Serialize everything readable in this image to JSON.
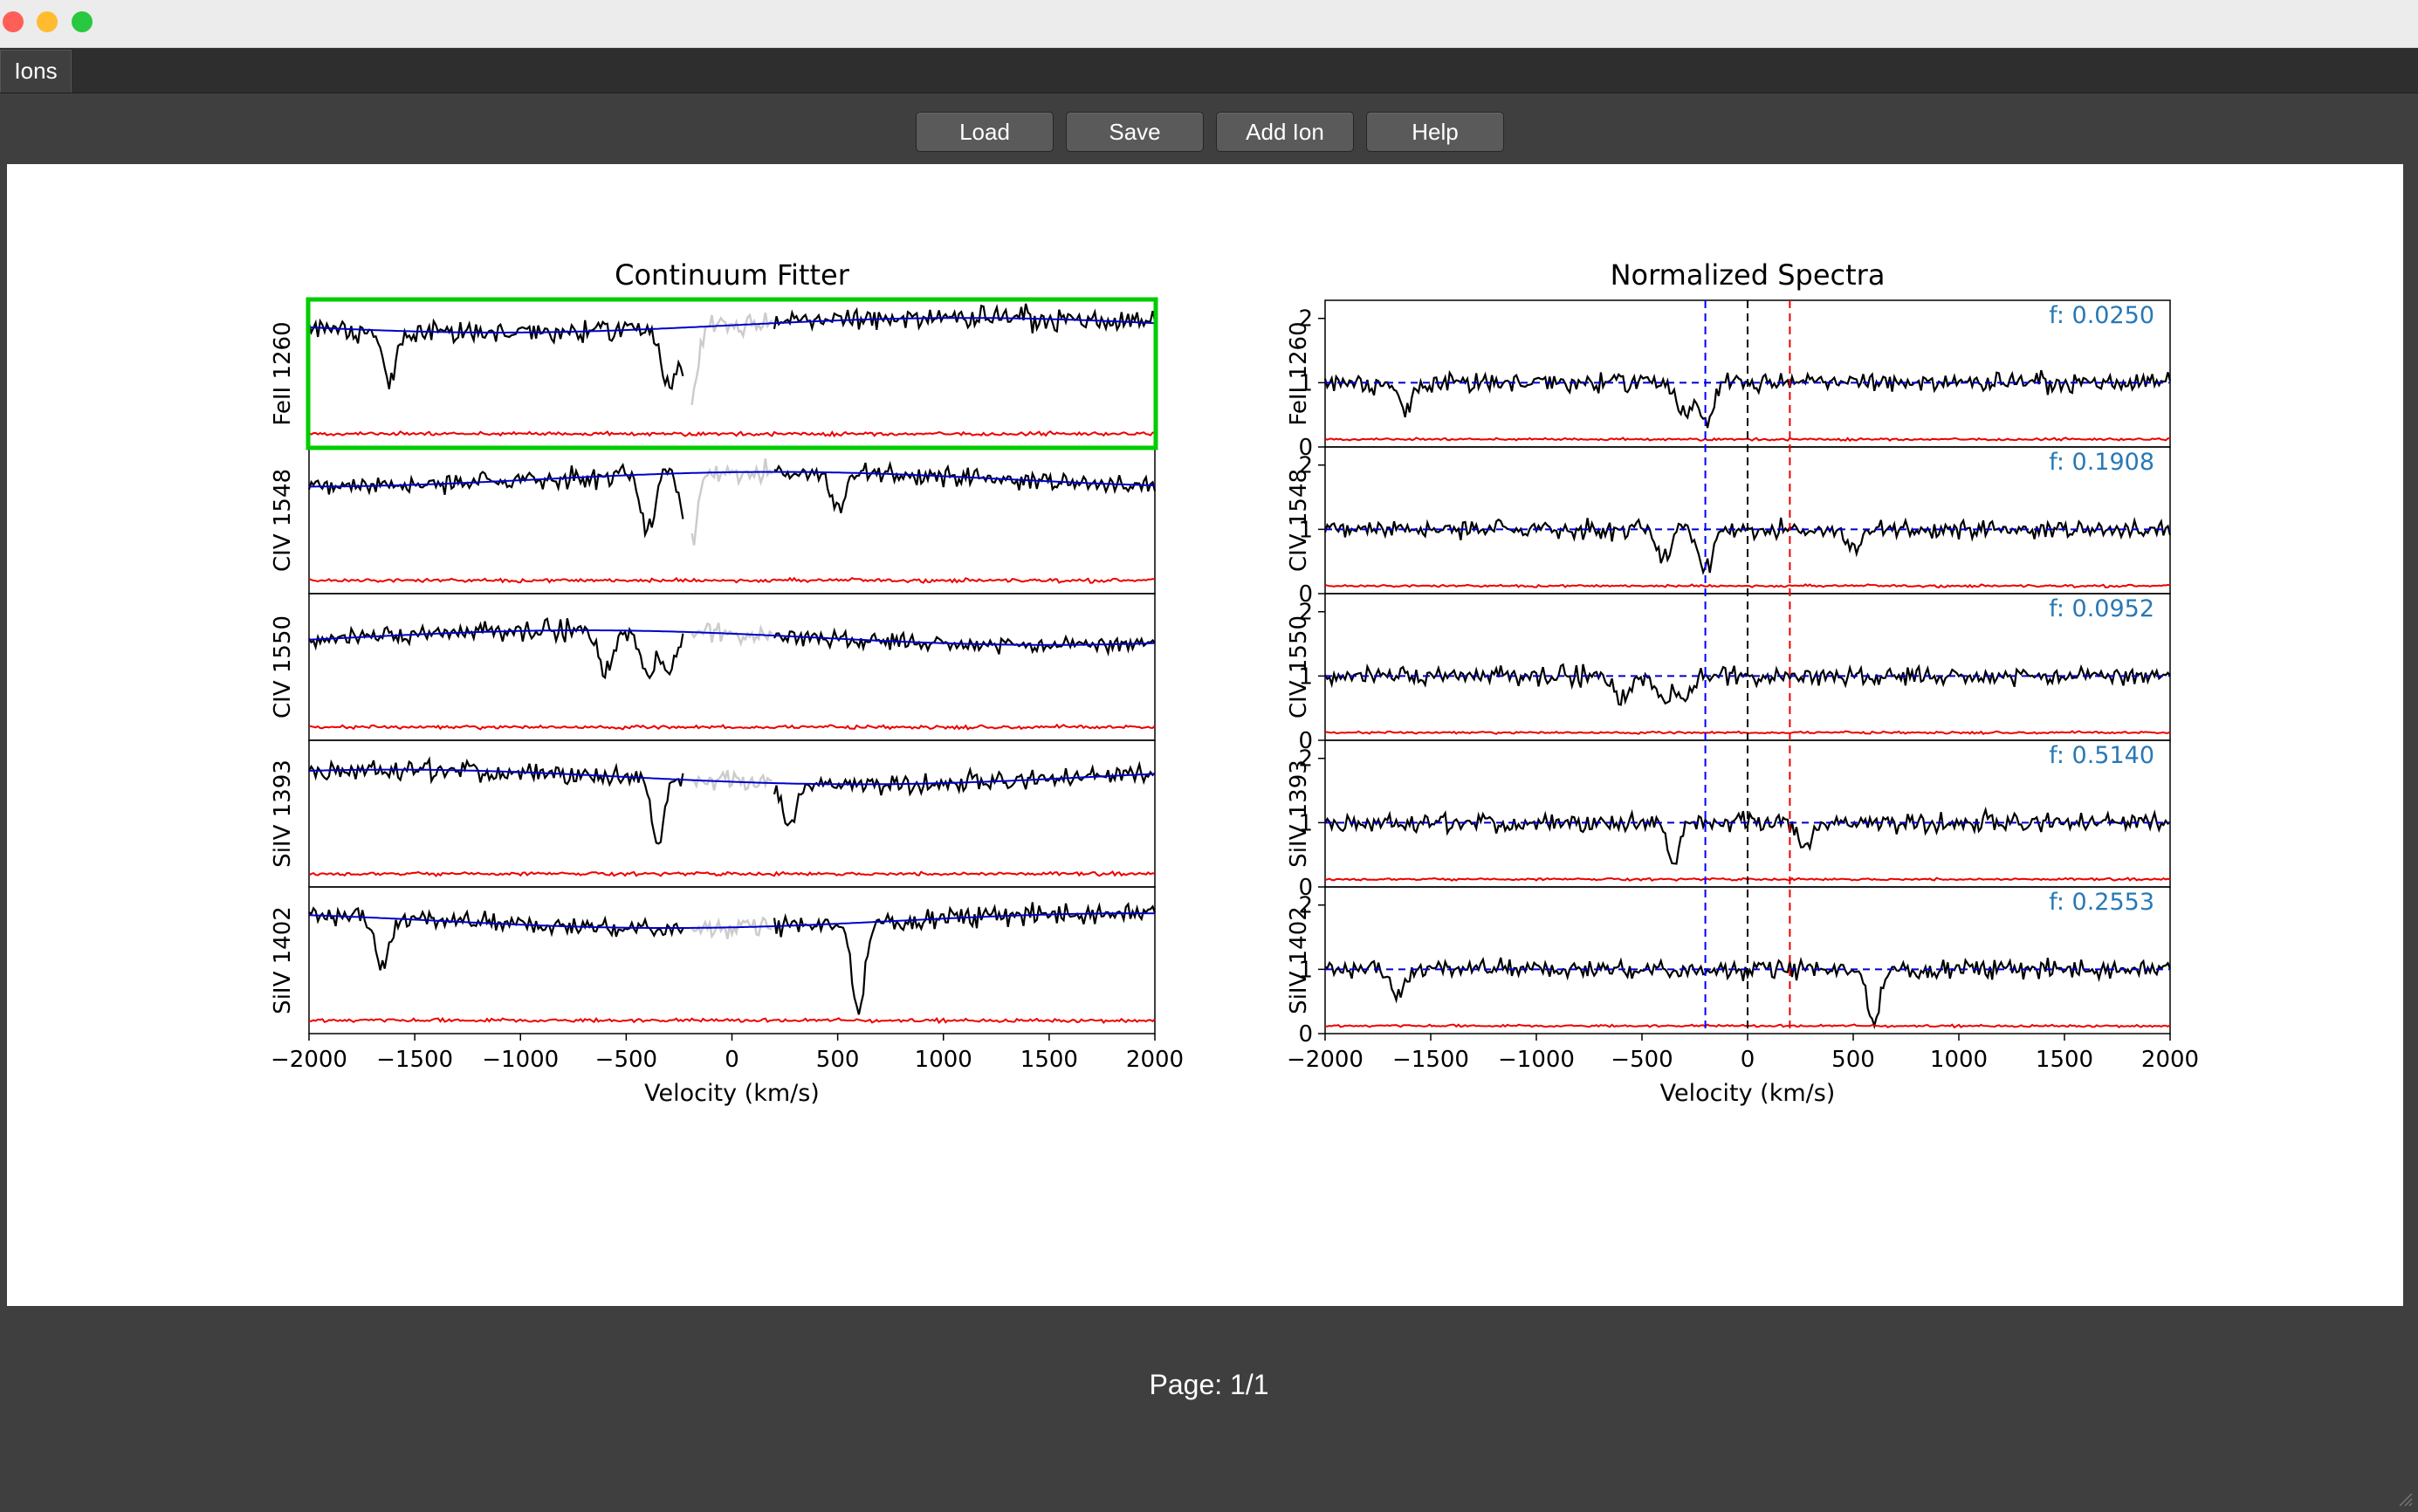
{
  "window": {
    "lights": [
      {
        "name": "close",
        "color": "#ff5f57"
      },
      {
        "name": "minimize",
        "color": "#febc2e"
      },
      {
        "name": "zoom",
        "color": "#28c840"
      }
    ]
  },
  "tabs": [
    {
      "label": "Ions",
      "active": true
    }
  ],
  "toolbar": {
    "load_label": "Load",
    "save_label": "Save",
    "add_ion_label": "Add Ion",
    "help_label": "Help"
  },
  "footer": {
    "page_label": "Page: 1/1"
  },
  "colors": {
    "flux": "#000000",
    "masked_flux": "#cccccc",
    "error": "#ee0000",
    "continuum": "#0000cc",
    "selected_border": "#00cc00",
    "f_value_text": "#2878b5",
    "vmin_line": "#0000ff",
    "vmax_line": "#ee0000",
    "zero_line": "#000000"
  },
  "chart_data": [
    {
      "type": "line",
      "title": "Continuum Fitter",
      "xlabel": "Velocity (km/s)",
      "xlim": [
        -2000,
        2000
      ],
      "x_ticks": [
        "−2000",
        "−1500",
        "−1000",
        "−500",
        "0",
        "500",
        "1000",
        "1500",
        "2000"
      ],
      "y_ticks_shown": false,
      "selected_panel": "FeII 1260",
      "masked_velocity_range": [
        -200,
        200
      ],
      "series": [
        {
          "name": "FeII 1260",
          "continuum_level": 0.83,
          "absorption_features": [
            {
              "v": -1620,
              "depth": 0.45
            },
            {
              "v": -300,
              "depth": 0.5
            },
            {
              "v": -200,
              "depth": 0.6
            }
          ]
        },
        {
          "name": "CIV 1548",
          "continuum_level": 0.78,
          "absorption_features": [
            {
              "v": -400,
              "depth": 0.5
            },
            {
              "v": -200,
              "depth": 0.6
            },
            {
              "v": 500,
              "depth": 0.3
            }
          ]
        },
        {
          "name": "CIV 1550",
          "continuum_level": 0.7,
          "absorption_features": [
            {
              "v": -600,
              "depth": 0.4
            },
            {
              "v": -400,
              "depth": 0.45
            },
            {
              "v": -300,
              "depth": 0.4
            }
          ]
        },
        {
          "name": "SiIV 1393",
          "continuum_level": 0.75,
          "absorption_features": [
            {
              "v": -350,
              "depth": 0.55
            },
            {
              "v": 270,
              "depth": 0.45
            }
          ]
        },
        {
          "name": "SiIV 1402",
          "continuum_level": 0.77,
          "absorption_features": [
            {
              "v": -1650,
              "depth": 0.45
            },
            {
              "v": 600,
              "depth": 0.75
            }
          ]
        }
      ]
    },
    {
      "type": "line",
      "title": "Normalized Spectra",
      "xlabel": "Velocity (km/s)",
      "xlim": [
        -2000,
        2000
      ],
      "ylim": [
        0,
        2.2
      ],
      "y_ticks": [
        "0",
        "1",
        "2"
      ],
      "x_ticks": [
        "−2000",
        "−1500",
        "−1000",
        "−500",
        "0",
        "500",
        "1000",
        "1500",
        "2000"
      ],
      "vlines": [
        -200,
        0,
        200
      ],
      "series": [
        {
          "name": "FeII 1260",
          "f": "f: 0.0250"
        },
        {
          "name": "CIV 1548",
          "f": "f: 0.1908"
        },
        {
          "name": "CIV 1550",
          "f": "f: 0.0952"
        },
        {
          "name": "SiIV 1393",
          "f": "f: 0.5140"
        },
        {
          "name": "SiIV 1402",
          "f": "f: 0.2553"
        }
      ]
    }
  ]
}
